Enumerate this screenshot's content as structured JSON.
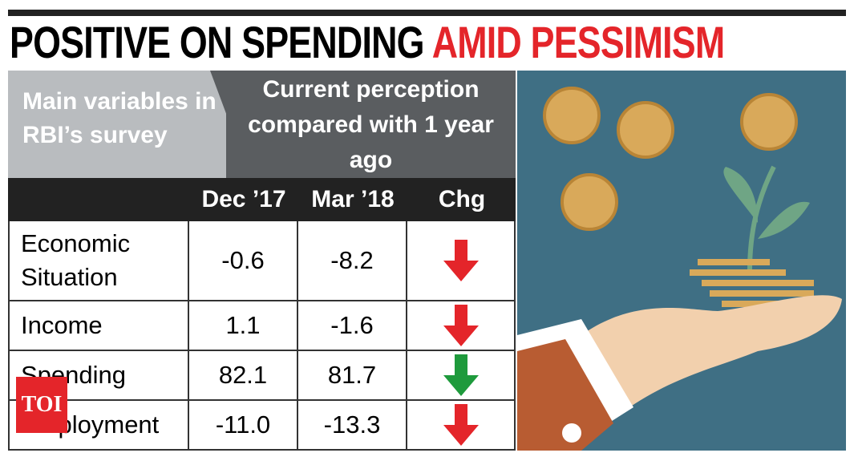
{
  "header": {
    "title_black": "POSITIVE ON SPENDING",
    "title_red": "AMID PESSIMISM"
  },
  "table": {
    "corner": "Main variables in RBI’s survey",
    "group_header": "Current perception compared with 1 year ago",
    "columns": [
      "Dec ’17",
      "Mar ’18",
      "Chg"
    ],
    "rows": [
      [
        "Economic Situation",
        "-0.6",
        "-8.2"
      ],
      [
        "Income",
        "1.1",
        "-1.6"
      ],
      [
        "Spending",
        "82.1",
        "81.7"
      ],
      [
        "Employment",
        "-11.0",
        "-13.3"
      ]
    ]
  },
  "logo": "TOI"
}
